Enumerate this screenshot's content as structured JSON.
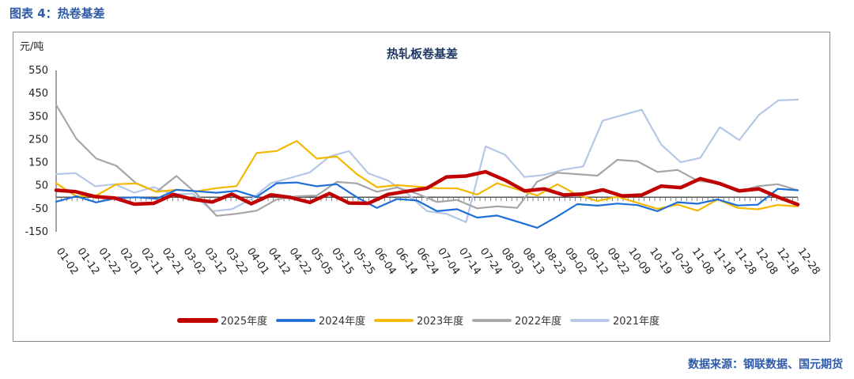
{
  "figure_caption": "图表 4：热卷基差",
  "source": "数据来源：钢联数据、国元期货",
  "chart_data": {
    "type": "line",
    "title": "热轧板卷基差",
    "unit": "元/吨",
    "ylim": [
      -150,
      550
    ],
    "yticks": [
      -150,
      -50,
      50,
      150,
      250,
      350,
      450,
      550
    ],
    "xticks": [
      "01-02",
      "01-12",
      "01-22",
      "02-01",
      "02-11",
      "02-21",
      "03-02",
      "03-12",
      "03-22",
      "04-01",
      "04-12",
      "04-22",
      "05-05",
      "05-15",
      "05-25",
      "06-04",
      "06-14",
      "06-24",
      "07-04",
      "07-14",
      "07-24",
      "08-03",
      "08-13",
      "08-23",
      "09-02",
      "09-12",
      "09-22",
      "10-09",
      "10-19",
      "10-29",
      "11-08",
      "11-18",
      "11-28",
      "12-08",
      "12-18",
      "12-28"
    ],
    "legend_position": "bottom",
    "series": [
      {
        "name": "2025年度",
        "color": "#c00000",
        "width": 4.5,
        "values": [
          10,
          20,
          15,
          -20,
          -30,
          -10,
          0,
          -5,
          0,
          5,
          -20,
          -10,
          -5,
          -10,
          0,
          -25,
          -10,
          0,
          30,
          60,
          80,
          100,
          90,
          70,
          40,
          20,
          10,
          30,
          20,
          10,
          30,
          40,
          50,
          60,
          55,
          40,
          20,
          0,
          -15
        ]
      },
      {
        "name": "2024年度",
        "color": "#1f6fd8",
        "width": 2.2,
        "values": [
          -40,
          0,
          -10,
          -20,
          0,
          10,
          20,
          30,
          40,
          20,
          10,
          40,
          60,
          60,
          40,
          0,
          -30,
          -20,
          -10,
          -40,
          -60,
          -80,
          -100,
          -110,
          -120,
          -100,
          -30,
          -20,
          -40,
          -30,
          -40,
          -30,
          -20,
          -30,
          -40,
          -20,
          20,
          30
        ]
      },
      {
        "name": "2023年度",
        "color": "#f5b800",
        "width": 2.2,
        "values": [
          40,
          0,
          20,
          40,
          60,
          40,
          20,
          30,
          60,
          40,
          200,
          180,
          240,
          180,
          160,
          100,
          60,
          40,
          50,
          60,
          30,
          20,
          40,
          30,
          20,
          40,
          10,
          0,
          -10,
          -20,
          -30,
          -40,
          -50,
          -30,
          -50,
          -40,
          -50,
          -40
        ]
      },
      {
        "name": "2022年度",
        "color": "#a6a6a6",
        "width": 2.2,
        "values": [
          380,
          250,
          180,
          120,
          60,
          40,
          80,
          20,
          -60,
          -80,
          -50,
          -30,
          0,
          20,
          50,
          60,
          40,
          30,
          20,
          0,
          -20,
          -40,
          -60,
          -50,
          80,
          90,
          100,
          110,
          150,
          160,
          130,
          110,
          80,
          40,
          20,
          60,
          40,
          30
        ]
      },
      {
        "name": "2021年度",
        "color": "#b4c7e7",
        "width": 2.2,
        "values": [
          80,
          100,
          60,
          40,
          20,
          60,
          0,
          20,
          -40,
          -60,
          0,
          40,
          80,
          120,
          160,
          200,
          120,
          60,
          20,
          -40,
          -80,
          -100,
          200,
          180,
          100,
          80,
          120,
          150,
          320,
          360,
          400,
          220,
          160,
          150,
          300,
          260,
          340,
          420,
          440
        ]
      }
    ]
  }
}
